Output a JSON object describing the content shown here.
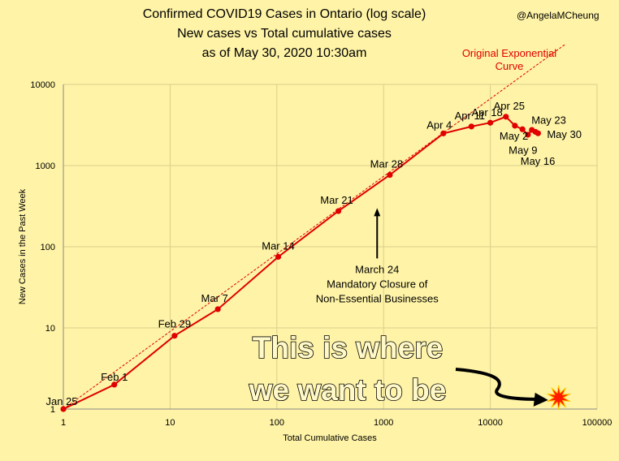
{
  "header": {
    "title_lines": [
      "Confirmed COVID19 Cases in Ontario (log scale)",
      "New cases vs Total cumulative cases",
      "as of May 30, 2020 10:30am"
    ],
    "handle": "@AngelaMCheung"
  },
  "chart_data": {
    "type": "line",
    "title": "Confirmed COVID19 Cases in Ontario (log scale)",
    "subtitle": "New cases vs Total cumulative cases",
    "xlabel": "Total Cumulative Cases",
    "ylabel": "New Cases in the Past Week",
    "xscale": "log",
    "yscale": "log",
    "xlim": [
      1,
      100000
    ],
    "ylim": [
      1,
      10000
    ],
    "x_ticks": [
      1,
      10,
      100,
      1000,
      10000,
      100000
    ],
    "y_ticks": [
      1,
      10,
      100,
      1000,
      10000
    ],
    "grid": true,
    "series": [
      {
        "name": "",
        "color": "#e00000",
        "points": [
          {
            "label": "Jan 25",
            "x": 1,
            "y": 1
          },
          {
            "label": "Feb 1",
            "x": 3,
            "y": 2
          },
          {
            "label": "Feb 29",
            "x": 11,
            "y": 8
          },
          {
            "label": "Mar 7",
            "x": 28,
            "y": 17
          },
          {
            "label": "Mar 14",
            "x": 103,
            "y": 75
          },
          {
            "label": "Mar 21",
            "x": 377,
            "y": 275
          },
          {
            "label": "Mar 28",
            "x": 1144,
            "y": 767
          },
          {
            "label": "Apr 4",
            "x": 3630,
            "y": 2490
          },
          {
            "label": "Apr 11",
            "x": 6650,
            "y": 3030
          },
          {
            "label": "Apr 18",
            "x": 10000,
            "y": 3370
          },
          {
            "label": "Apr 25",
            "x": 14000,
            "y": 4000
          },
          {
            "label": "May 2",
            "x": 17000,
            "y": 3100
          },
          {
            "label": "May 9",
            "x": 20000,
            "y": 2800
          },
          {
            "label": "",
            "x": 22500,
            "y": 2400
          },
          {
            "label": "May 16",
            "x": 24500,
            "y": 2750
          },
          {
            "label": "May 23",
            "x": 26500,
            "y": 2600
          },
          {
            "label": "May 30",
            "x": 28000,
            "y": 2500
          }
        ]
      },
      {
        "name": "Original Exponential Curve",
        "color": "#e00000",
        "style": "dashed",
        "points": [
          {
            "x": 1,
            "y": 1
          },
          {
            "x": 50000,
            "y": 31000
          }
        ]
      }
    ],
    "annotations": {
      "curve_label": [
        "Original Exponential",
        "Curve"
      ],
      "closure_lines": [
        "March 24",
        "Mandatory Closure of",
        "Non-Essential Businesses"
      ],
      "closure_at": {
        "x": 870,
        "y": 150
      },
      "goal_lines": [
        "This is where",
        "we want to be"
      ],
      "goal_target": {
        "x": 40000,
        "y": 1.15
      }
    }
  }
}
